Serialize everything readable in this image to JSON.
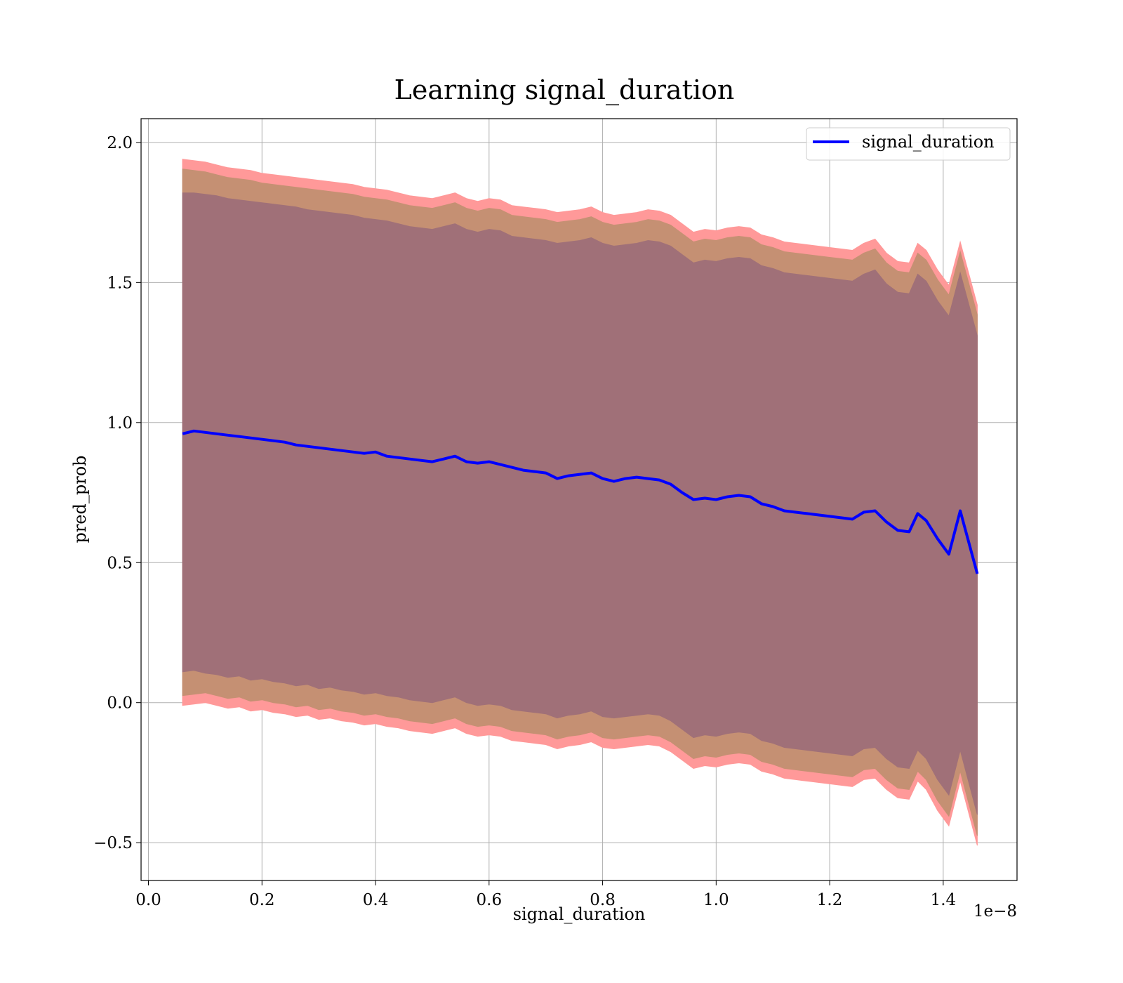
{
  "chart_data": {
    "type": "line",
    "title": "Learning signal_duration",
    "xlabel": "signal_duration",
    "ylabel": "pred_prob",
    "x_offset_label": "1e−8",
    "xlim": [
      -0.013,
      1.53
    ],
    "ylim": [
      -0.635,
      2.085
    ],
    "xticks": [
      0.0,
      0.2,
      0.4,
      0.6,
      0.8,
      1.0,
      1.2,
      1.4
    ],
    "xtick_labels": [
      "0.0",
      "0.2",
      "0.4",
      "0.6",
      "0.8",
      "1.0",
      "1.2",
      "1.4"
    ],
    "yticks": [
      -0.5,
      0.0,
      0.5,
      1.0,
      1.5,
      2.0
    ],
    "ytick_labels": [
      "−0.5",
      "0.0",
      "0.5",
      "1.0",
      "1.5",
      "2.0"
    ],
    "grid": true,
    "legend": {
      "position": "top-right",
      "entries": [
        "signal_duration"
      ]
    },
    "colors": {
      "line": "#0000ff",
      "outer_band": "#ff9999",
      "middle_band": "#c59073",
      "inner_band": "#a07078"
    },
    "series": [
      {
        "name": "signal_duration",
        "x": [
          0.06,
          0.08,
          0.1,
          0.12,
          0.14,
          0.16,
          0.18,
          0.2,
          0.22,
          0.24,
          0.26,
          0.28,
          0.3,
          0.32,
          0.34,
          0.36,
          0.38,
          0.4,
          0.42,
          0.44,
          0.46,
          0.48,
          0.5,
          0.52,
          0.54,
          0.56,
          0.58,
          0.6,
          0.62,
          0.64,
          0.66,
          0.68,
          0.7,
          0.72,
          0.74,
          0.76,
          0.78,
          0.8,
          0.82,
          0.84,
          0.86,
          0.88,
          0.9,
          0.92,
          0.94,
          0.96,
          0.98,
          1.0,
          1.02,
          1.04,
          1.06,
          1.08,
          1.1,
          1.12,
          1.14,
          1.16,
          1.18,
          1.2,
          1.22,
          1.24,
          1.26,
          1.28,
          1.3,
          1.32,
          1.34,
          1.355,
          1.37,
          1.39,
          1.41,
          1.43,
          1.46
        ],
        "y": [
          0.96,
          0.97,
          0.965,
          0.96,
          0.955,
          0.95,
          0.945,
          0.94,
          0.935,
          0.93,
          0.92,
          0.915,
          0.91,
          0.905,
          0.9,
          0.895,
          0.89,
          0.895,
          0.88,
          0.875,
          0.87,
          0.865,
          0.86,
          0.87,
          0.88,
          0.86,
          0.855,
          0.86,
          0.85,
          0.84,
          0.83,
          0.825,
          0.82,
          0.8,
          0.81,
          0.815,
          0.82,
          0.8,
          0.79,
          0.8,
          0.805,
          0.8,
          0.795,
          0.78,
          0.75,
          0.725,
          0.73,
          0.725,
          0.735,
          0.74,
          0.735,
          0.71,
          0.7,
          0.685,
          0.68,
          0.675,
          0.67,
          0.665,
          0.66,
          0.655,
          0.68,
          0.685,
          0.645,
          0.615,
          0.61,
          0.675,
          0.65,
          0.585,
          0.53,
          0.685,
          0.46
        ],
        "outer_upper": [
          1.94,
          1.935,
          1.93,
          1.92,
          1.91,
          1.905,
          1.9,
          1.89,
          1.885,
          1.88,
          1.875,
          1.87,
          1.865,
          1.86,
          1.855,
          1.85,
          1.84,
          1.835,
          1.83,
          1.82,
          1.81,
          1.805,
          1.8,
          1.81,
          1.82,
          1.8,
          1.79,
          1.8,
          1.795,
          1.775,
          1.77,
          1.765,
          1.76,
          1.75,
          1.755,
          1.76,
          1.77,
          1.75,
          1.74,
          1.745,
          1.75,
          1.76,
          1.755,
          1.74,
          1.71,
          1.68,
          1.69,
          1.685,
          1.695,
          1.7,
          1.695,
          1.67,
          1.66,
          1.645,
          1.64,
          1.635,
          1.63,
          1.625,
          1.62,
          1.615,
          1.64,
          1.655,
          1.605,
          1.575,
          1.57,
          1.64,
          1.615,
          1.545,
          1.49,
          1.645,
          1.42
        ],
        "outer_lower": [
          -0.01,
          -0.005,
          0.0,
          -0.01,
          -0.02,
          -0.015,
          -0.03,
          -0.025,
          -0.035,
          -0.04,
          -0.05,
          -0.045,
          -0.06,
          -0.055,
          -0.065,
          -0.07,
          -0.08,
          -0.075,
          -0.085,
          -0.09,
          -0.1,
          -0.105,
          -0.11,
          -0.1,
          -0.09,
          -0.11,
          -0.12,
          -0.115,
          -0.12,
          -0.135,
          -0.14,
          -0.145,
          -0.15,
          -0.165,
          -0.155,
          -0.15,
          -0.14,
          -0.16,
          -0.165,
          -0.16,
          -0.155,
          -0.15,
          -0.155,
          -0.175,
          -0.205,
          -0.235,
          -0.225,
          -0.23,
          -0.22,
          -0.215,
          -0.22,
          -0.245,
          -0.255,
          -0.27,
          -0.275,
          -0.28,
          -0.285,
          -0.29,
          -0.295,
          -0.3,
          -0.275,
          -0.27,
          -0.31,
          -0.34,
          -0.345,
          -0.28,
          -0.31,
          -0.385,
          -0.44,
          -0.28,
          -0.51
        ],
        "inner_upper": [
          1.82,
          1.82,
          1.815,
          1.81,
          1.8,
          1.795,
          1.79,
          1.785,
          1.78,
          1.775,
          1.77,
          1.76,
          1.755,
          1.75,
          1.745,
          1.74,
          1.73,
          1.725,
          1.72,
          1.71,
          1.7,
          1.695,
          1.69,
          1.7,
          1.71,
          1.69,
          1.68,
          1.69,
          1.685,
          1.665,
          1.66,
          1.655,
          1.65,
          1.64,
          1.645,
          1.65,
          1.66,
          1.64,
          1.63,
          1.635,
          1.64,
          1.65,
          1.645,
          1.63,
          1.6,
          1.57,
          1.58,
          1.575,
          1.585,
          1.59,
          1.585,
          1.56,
          1.55,
          1.535,
          1.53,
          1.525,
          1.52,
          1.515,
          1.51,
          1.505,
          1.53,
          1.545,
          1.495,
          1.465,
          1.46,
          1.53,
          1.505,
          1.435,
          1.38,
          1.535,
          1.31
        ],
        "inner_lower": [
          0.11,
          0.115,
          0.105,
          0.1,
          0.09,
          0.095,
          0.08,
          0.085,
          0.075,
          0.07,
          0.06,
          0.065,
          0.05,
          0.055,
          0.045,
          0.04,
          0.03,
          0.035,
          0.025,
          0.02,
          0.01,
          0.005,
          0.0,
          0.01,
          0.02,
          0.0,
          -0.01,
          -0.005,
          -0.01,
          -0.025,
          -0.03,
          -0.035,
          -0.04,
          -0.055,
          -0.045,
          -0.04,
          -0.03,
          -0.05,
          -0.055,
          -0.05,
          -0.045,
          -0.04,
          -0.045,
          -0.065,
          -0.095,
          -0.125,
          -0.115,
          -0.12,
          -0.11,
          -0.105,
          -0.11,
          -0.135,
          -0.145,
          -0.16,
          -0.165,
          -0.17,
          -0.175,
          -0.18,
          -0.185,
          -0.19,
          -0.165,
          -0.16,
          -0.2,
          -0.23,
          -0.235,
          -0.17,
          -0.2,
          -0.275,
          -0.33,
          -0.17,
          -0.4
        ]
      }
    ]
  }
}
